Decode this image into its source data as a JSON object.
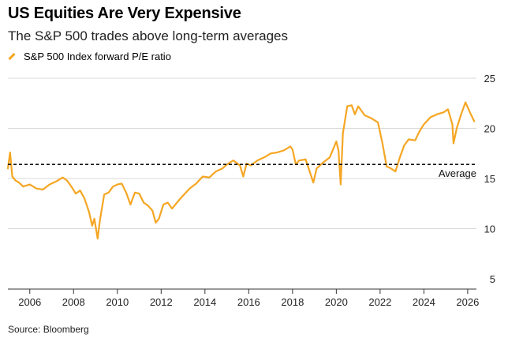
{
  "header": {
    "title": "US Equities Are Very Expensive",
    "subtitle": "The S&P 500 trades above long-term averages"
  },
  "legend": {
    "label": "S&P 500 Index forward P/E ratio",
    "color": "#f5a623"
  },
  "footer": {
    "source": "Source: Bloomberg"
  },
  "chart_data": {
    "type": "line",
    "title": "US Equities Are Very Expensive",
    "subtitle": "The S&P 500 trades above long-term averages",
    "xlabel": "",
    "ylabel": "",
    "xlim": [
      2005.0,
      2026.4
    ],
    "ylim": [
      5,
      25
    ],
    "x_ticks": [
      2006,
      2008,
      2010,
      2012,
      2014,
      2016,
      2018,
      2020,
      2022,
      2024,
      2026
    ],
    "y_ticks": [
      5,
      10,
      15,
      20,
      25
    ],
    "grid": "horizontal",
    "series": [
      {
        "name": "S&P 500 Index forward P/E ratio",
        "color": "#f5a623",
        "x": [
          2005.0,
          2005.1,
          2005.2,
          2005.35,
          2005.5,
          2005.7,
          2006.0,
          2006.3,
          2006.6,
          2006.9,
          2007.2,
          2007.5,
          2007.7,
          2007.9,
          2008.1,
          2008.3,
          2008.5,
          2008.7,
          2008.85,
          2008.95,
          2009.1,
          2009.2,
          2009.4,
          2009.6,
          2009.8,
          2010.0,
          2010.2,
          2010.4,
          2010.6,
          2010.8,
          2011.0,
          2011.2,
          2011.4,
          2011.6,
          2011.75,
          2011.9,
          2012.1,
          2012.3,
          2012.5,
          2012.8,
          2013.0,
          2013.3,
          2013.6,
          2013.9,
          2014.2,
          2014.5,
          2014.8,
          2015.0,
          2015.3,
          2015.6,
          2015.75,
          2015.9,
          2016.1,
          2016.4,
          2016.7,
          2017.0,
          2017.3,
          2017.6,
          2017.9,
          2018.0,
          2018.15,
          2018.3,
          2018.6,
          2018.8,
          2018.95,
          2019.1,
          2019.4,
          2019.7,
          2020.0,
          2020.1,
          2020.2,
          2020.3,
          2020.5,
          2020.7,
          2020.85,
          2021.0,
          2021.3,
          2021.6,
          2021.9,
          2022.1,
          2022.3,
          2022.5,
          2022.7,
          2022.9,
          2023.1,
          2023.3,
          2023.6,
          2023.8,
          2024.0,
          2024.3,
          2024.6,
          2024.9,
          2025.1,
          2025.3,
          2025.35,
          2025.5,
          2025.7,
          2025.9,
          2026.1,
          2026.3
        ],
        "values": [
          16.0,
          17.6,
          15.2,
          14.8,
          14.6,
          14.2,
          14.4,
          14.0,
          13.9,
          14.4,
          14.7,
          15.1,
          14.8,
          14.2,
          13.5,
          13.8,
          13.0,
          11.7,
          10.3,
          11.0,
          9.0,
          10.8,
          13.4,
          13.6,
          14.2,
          14.4,
          14.5,
          13.6,
          12.4,
          13.6,
          13.5,
          12.6,
          12.3,
          11.8,
          10.6,
          11.0,
          12.4,
          12.6,
          12.0,
          12.8,
          13.3,
          14.0,
          14.5,
          15.2,
          15.1,
          15.7,
          16.0,
          16.4,
          16.8,
          16.3,
          15.2,
          16.5,
          16.3,
          16.8,
          17.1,
          17.5,
          17.6,
          17.8,
          18.2,
          17.9,
          16.4,
          16.8,
          16.9,
          15.6,
          14.6,
          16.0,
          16.6,
          17.1,
          18.7,
          17.8,
          14.4,
          19.5,
          22.2,
          22.3,
          21.4,
          22.2,
          21.3,
          21.0,
          20.6,
          18.6,
          16.2,
          16.0,
          15.7,
          17.1,
          18.3,
          18.9,
          18.8,
          19.7,
          20.4,
          21.1,
          21.4,
          21.6,
          21.9,
          20.4,
          18.5,
          20.0,
          21.4,
          22.6,
          21.6,
          20.7
        ]
      }
    ],
    "reference_lines": [
      {
        "label": "Average",
        "value": 16.4,
        "style": "dashed"
      }
    ]
  }
}
